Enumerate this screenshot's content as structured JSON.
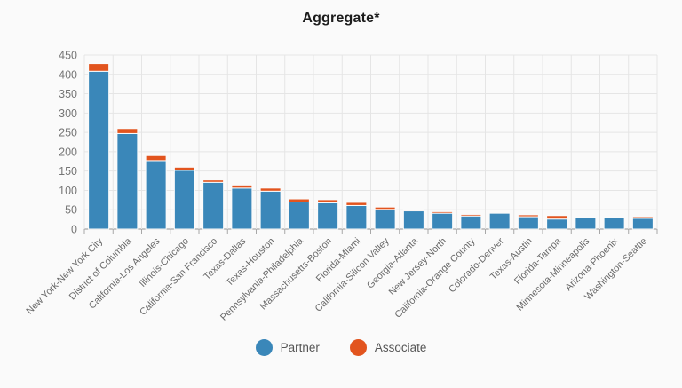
{
  "title": "Aggregate*",
  "colors": {
    "partner": "#3a87b9",
    "associate": "#e2541e",
    "background": "#fafafa",
    "gridline": "#e5e5e5",
    "axis_line": "#a8a8a8",
    "tick_label": "#757575",
    "category_label": "#696969",
    "title_text": "#1c1c1c",
    "legend_text": "#555555"
  },
  "legend": {
    "items": [
      {
        "label": "Partner",
        "color": "#3a87b9"
      },
      {
        "label": "Associate",
        "color": "#e2541e"
      }
    ],
    "position": "bottom-center"
  },
  "chart_data": {
    "type": "bar",
    "stacked": true,
    "title": "Aggregate*",
    "xlabel": "",
    "ylabel": "",
    "ylim": [
      0,
      450
    ],
    "y_ticks": [
      0,
      50,
      100,
      150,
      200,
      250,
      300,
      350,
      400,
      450
    ],
    "grid": true,
    "legend_position": "bottom",
    "categories": [
      "New York-New York City",
      "District of Columbia",
      "California-Los Angeles",
      "Illinois-Chicago",
      "California-San Francisco",
      "Texas-Dallas",
      "Texas-Houston",
      "Pennsylvania-Philadelphia",
      "Massachusetts-Boston",
      "Florida-Miami",
      "California-Silicon Valley",
      "Georgia-Atlanta",
      "New Jersey-North",
      "California-Orange County",
      "Colorado-Denver",
      "Texas-Austin",
      "Florida-Tampa",
      "Minnesota-Minneapolis",
      "Arizona-Phoenix",
      "Washington-Seattle"
    ],
    "series": [
      {
        "name": "Partner",
        "color": "#3a87b9",
        "values": [
          408,
          247,
          177,
          152,
          121,
          106,
          98,
          70,
          68,
          61,
          51,
          47,
          41,
          34,
          41,
          32,
          26,
          31,
          31,
          28
        ]
      },
      {
        "name": "Associate",
        "color": "#e2541e",
        "values": [
          20,
          13,
          13,
          8,
          6,
          8,
          8,
          8,
          8,
          8,
          6,
          4,
          4,
          4,
          0,
          5,
          9,
          0,
          0,
          4
        ]
      }
    ]
  }
}
